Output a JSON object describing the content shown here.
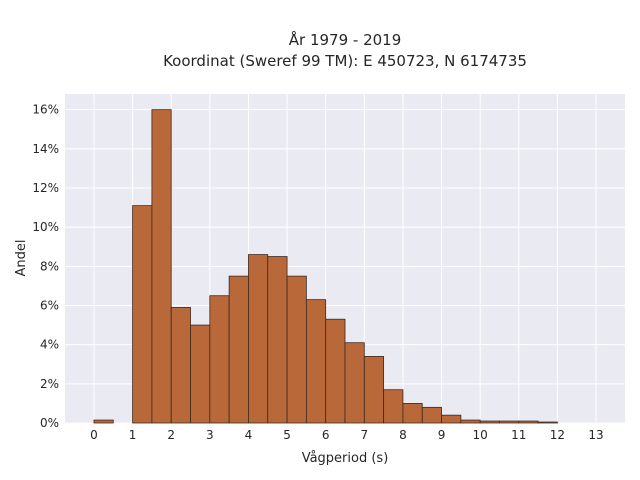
{
  "colors": {
    "bar_fill": "#b9683a",
    "bar_edge": "#3d2a1f",
    "plot_bg": "#eaeaf2",
    "grid": "#ffffff"
  },
  "chart_data": {
    "type": "bar",
    "title_line1": "År 1979 - 2019",
    "title_line2": "Koordinat (Sweref 99 TM): E 450723, N 6174735",
    "xlabel": "Vågperiod (s)",
    "ylabel": "Andel",
    "xlim": [
      -0.75,
      13.75
    ],
    "ylim": [
      0,
      0.168
    ],
    "grid": true,
    "x_ticks": [
      0,
      1,
      2,
      3,
      4,
      5,
      6,
      7,
      8,
      9,
      10,
      11,
      12,
      13
    ],
    "x_tick_labels": [
      "0",
      "1",
      "2",
      "3",
      "4",
      "5",
      "6",
      "7",
      "8",
      "9",
      "10",
      "11",
      "12",
      "13"
    ],
    "y_ticks": [
      0,
      0.02,
      0.04,
      0.06,
      0.08,
      0.1,
      0.12,
      0.14,
      0.16
    ],
    "y_tick_labels": [
      "0%",
      "2%",
      "4%",
      "6%",
      "8%",
      "10%",
      "12%",
      "14%",
      "16%"
    ],
    "bins": [
      {
        "x0": 0.0,
        "x1": 0.5,
        "value": 0.0015
      },
      {
        "x0": 0.5,
        "x1": 1.0,
        "value": 0.0
      },
      {
        "x0": 1.0,
        "x1": 1.5,
        "value": 0.111
      },
      {
        "x0": 1.5,
        "x1": 2.0,
        "value": 0.16
      },
      {
        "x0": 2.0,
        "x1": 2.5,
        "value": 0.059
      },
      {
        "x0": 2.5,
        "x1": 3.0,
        "value": 0.05
      },
      {
        "x0": 3.0,
        "x1": 3.5,
        "value": 0.065
      },
      {
        "x0": 3.5,
        "x1": 4.0,
        "value": 0.075
      },
      {
        "x0": 4.0,
        "x1": 4.5,
        "value": 0.086
      },
      {
        "x0": 4.5,
        "x1": 5.0,
        "value": 0.085
      },
      {
        "x0": 5.0,
        "x1": 5.5,
        "value": 0.075
      },
      {
        "x0": 5.5,
        "x1": 6.0,
        "value": 0.063
      },
      {
        "x0": 6.0,
        "x1": 6.5,
        "value": 0.053
      },
      {
        "x0": 6.5,
        "x1": 7.0,
        "value": 0.041
      },
      {
        "x0": 7.0,
        "x1": 7.5,
        "value": 0.034
      },
      {
        "x0": 7.5,
        "x1": 8.0,
        "value": 0.017
      },
      {
        "x0": 8.0,
        "x1": 8.5,
        "value": 0.01
      },
      {
        "x0": 8.5,
        "x1": 9.0,
        "value": 0.008
      },
      {
        "x0": 9.0,
        "x1": 9.5,
        "value": 0.004
      },
      {
        "x0": 9.5,
        "x1": 10.0,
        "value": 0.0015
      },
      {
        "x0": 10.0,
        "x1": 10.5,
        "value": 0.001
      },
      {
        "x0": 10.5,
        "x1": 11.0,
        "value": 0.001
      },
      {
        "x0": 11.0,
        "x1": 11.5,
        "value": 0.001
      },
      {
        "x0": 11.5,
        "x1": 12.0,
        "value": 0.0005
      }
    ]
  }
}
